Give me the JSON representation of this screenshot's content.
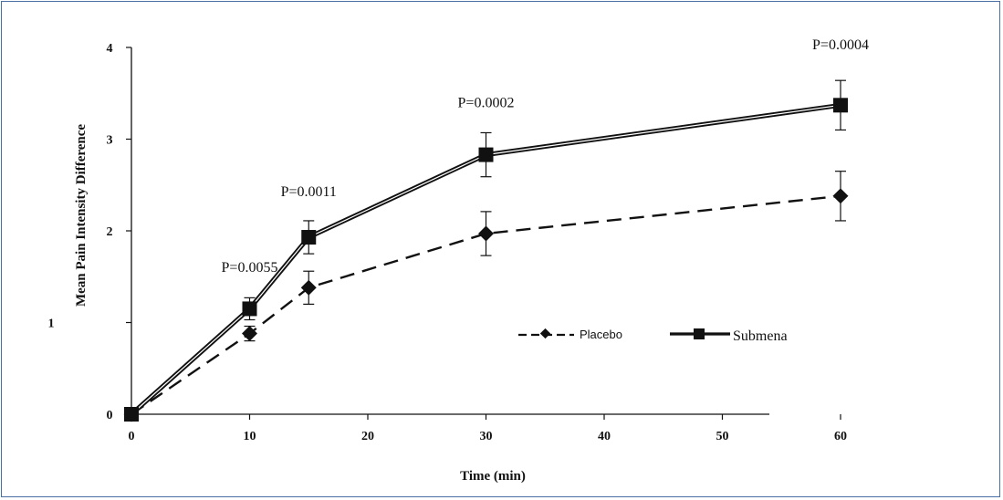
{
  "chart_data": {
    "type": "line",
    "xlabel": "Time (min)",
    "ylabel": "Mean  Pain Intensity Difference",
    "xlim": [
      0,
      60
    ],
    "ylim": [
      0,
      4
    ],
    "x_ticks": [
      0,
      10,
      20,
      30,
      40,
      50,
      60
    ],
    "x_tick_labels": [
      "0",
      "10",
      "20",
      "30",
      "40",
      "50",
      "60"
    ],
    "y_ticks": [
      0,
      1,
      2,
      3,
      4
    ],
    "y_tick_labels": [
      "0",
      "1",
      "2",
      "3",
      "4"
    ],
    "grid": false,
    "legend_position": "center-right",
    "series": [
      {
        "name": "Placebo",
        "marker": "diamond",
        "line_style": "dashed",
        "color": "#111111",
        "x": [
          0,
          10,
          15,
          30,
          60
        ],
        "values": [
          0,
          0.88,
          1.38,
          1.97,
          2.38
        ],
        "error": [
          0,
          0.08,
          0.18,
          0.24,
          0.27
        ]
      },
      {
        "name": "Submena",
        "marker": "square",
        "line_style": "double-solid",
        "color": "#111111",
        "x": [
          0,
          10,
          15,
          30,
          60
        ],
        "values": [
          0,
          1.15,
          1.93,
          2.83,
          3.37
        ],
        "error": [
          0,
          0.12,
          0.18,
          0.24,
          0.27
        ]
      }
    ],
    "annotations": [
      {
        "text": "P=0.0055",
        "x": 10,
        "y": 1.55
      },
      {
        "text": "P=0.0011",
        "x": 15,
        "y": 2.38
      },
      {
        "text": "P=0.0002",
        "x": 30,
        "y": 3.35
      },
      {
        "text": "P=0.0004",
        "x": 60,
        "y": 3.98
      }
    ]
  }
}
